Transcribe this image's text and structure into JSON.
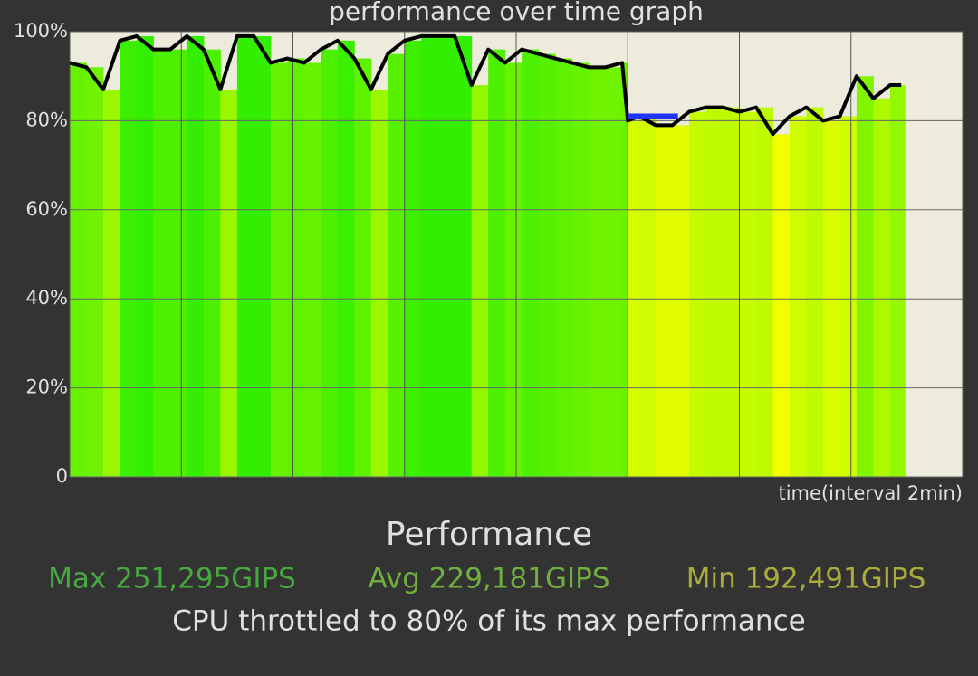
{
  "chart_data": {
    "type": "area",
    "title": "performance over time graph",
    "x_label": "time(interval 2min)",
    "xlim": [
      0,
      8
    ],
    "xticks": [
      0,
      1,
      2,
      3,
      4,
      5,
      6,
      7,
      8
    ],
    "ylim": [
      0,
      100
    ],
    "yticks": [
      0,
      {
        "value": 20,
        "label": "20%"
      },
      {
        "value": 40,
        "label": "40%"
      },
      {
        "value": 60,
        "label": "60%"
      },
      {
        "value": 80,
        "label": "80%"
      },
      {
        "value": 100,
        "label": "100%"
      }
    ],
    "grid": true,
    "line_color": "#000000",
    "fill_high_color": "#33ee00",
    "fill_low_color": "#f2ff00",
    "series": [
      {
        "color": "#000000",
        "x": [
          0,
          0.15,
          0.3,
          0.45,
          0.6,
          0.75,
          0.9,
          1.05,
          1.2,
          1.35,
          1.5,
          1.65,
          1.8,
          1.95,
          2.1,
          2.25,
          2.4,
          2.55,
          2.7,
          2.85,
          3.0,
          3.15,
          3.3,
          3.45,
          3.6,
          3.75,
          3.9,
          4.05,
          4.2,
          4.35,
          4.5,
          4.65,
          4.8,
          4.95,
          5.0,
          5.1,
          5.25,
          5.4,
          5.55,
          5.7,
          5.85,
          6.0,
          6.15,
          6.3,
          6.45,
          6.6,
          6.75,
          6.9,
          7.05,
          7.2,
          7.35,
          7.45
        ],
        "values": [
          93,
          92,
          87,
          98,
          99,
          96,
          96,
          99,
          96,
          87,
          99,
          99,
          93,
          94,
          93,
          96,
          98,
          94,
          87,
          95,
          98,
          99,
          99,
          99,
          88,
          96,
          93,
          96,
          95,
          94,
          93,
          92,
          92,
          93,
          80,
          81,
          79,
          79,
          82,
          83,
          83,
          82,
          83,
          77,
          81,
          83,
          80,
          81,
          90,
          85,
          88,
          88
        ]
      },
      {
        "color": "#2233ff",
        "x": [
          5.0,
          5.45
        ],
        "values": [
          81,
          81
        ]
      }
    ]
  },
  "summary": {
    "heading": "Performance",
    "max": "Max 251,295GIPS",
    "avg": "Avg 229,181GIPS",
    "min": "Min 192,491GIPS",
    "note": "CPU throttled to 80% of its max performance"
  }
}
